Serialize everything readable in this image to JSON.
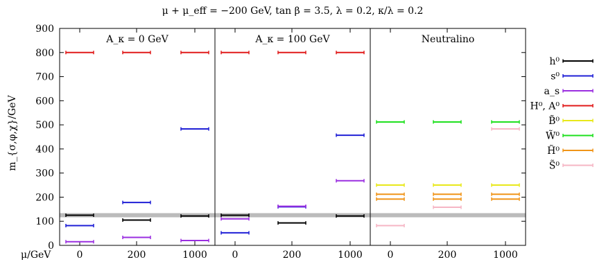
{
  "chart_data": {
    "type": "scatter",
    "title": "μ + μ_eff = −200 GeV, tan β = 3.5, λ = 0.2, κ/λ = 0.2",
    "ylabel": "m_{σ,φ,χ}/GeV",
    "xlabel": "μ/GeV",
    "ylim": [
      0,
      900
    ],
    "yticks": [
      0,
      100,
      200,
      300,
      400,
      500,
      600,
      700,
      800,
      900
    ],
    "mu_values": [
      "0",
      "200",
      "1000"
    ],
    "reference_band": 125,
    "legend_position": "right",
    "panels": [
      {
        "label": "A_κ = 0 GeV",
        "points": [
          {
            "series": "H0A0",
            "values": [
              800,
              800,
              800
            ]
          },
          {
            "series": "h0",
            "values": [
              125,
              105,
              122
            ]
          },
          {
            "series": "s0",
            "values": [
              82,
              178,
              483
            ]
          },
          {
            "series": "as",
            "values": [
              15,
              33,
              20
            ]
          }
        ]
      },
      {
        "label": "A_κ = 100 GeV",
        "points": [
          {
            "series": "H0A0",
            "values": [
              800,
              800,
              800
            ]
          },
          {
            "series": "h0",
            "values": [
              125,
              93,
              122
            ]
          },
          {
            "series": "s0",
            "values": [
              52,
              160,
              457
            ]
          },
          {
            "series": "as",
            "values": [
              110,
              162,
              268
            ]
          }
        ]
      },
      {
        "label": "Neutralino",
        "points": [
          {
            "series": "W0",
            "values": [
              512,
              512,
              512
            ]
          },
          {
            "series": "S0",
            "values": [
              82,
              158,
              483
            ]
          },
          {
            "series": "B0",
            "values": [
              250,
              250,
              250
            ]
          },
          {
            "series": "H0t_a",
            "values": [
              212,
              212,
              212
            ]
          },
          {
            "series": "H0t_b",
            "values": [
              192,
              192,
              192
            ]
          }
        ]
      }
    ],
    "series": [
      {
        "id": "h0",
        "name": "h⁰",
        "color": "#000000"
      },
      {
        "id": "s0",
        "name": "s⁰",
        "color": "#1f1fd6"
      },
      {
        "id": "as",
        "name": "a_s",
        "color": "#9a2ee0"
      },
      {
        "id": "H0A0",
        "name": "H⁰, A⁰",
        "color": "#e01a1a"
      },
      {
        "id": "B0",
        "name": "B̃⁰",
        "color": "#e8e81a"
      },
      {
        "id": "W0",
        "name": "W̃⁰",
        "color": "#1ee01e"
      },
      {
        "id": "H0t",
        "name": "H̃⁰",
        "color": "#f09418"
      },
      {
        "id": "S0",
        "name": "S̃⁰",
        "color": "#f6b6c4"
      }
    ],
    "series_colors": {
      "H0t_a": "#f09418",
      "H0t_b": "#f09418"
    }
  }
}
